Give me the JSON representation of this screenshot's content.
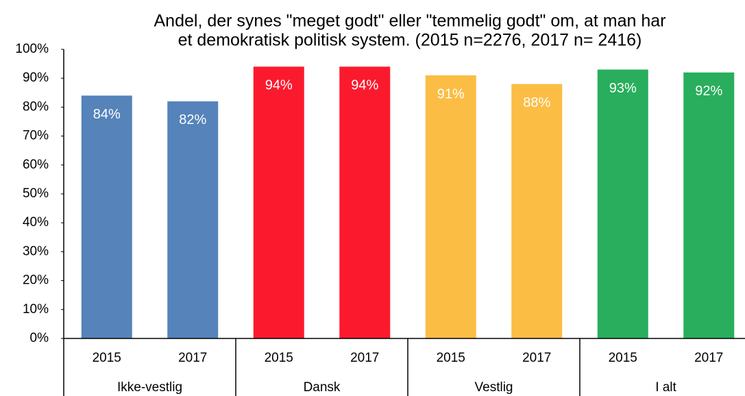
{
  "chart_data": {
    "type": "bar",
    "subtitle": [
      "Andel, der synes \"meget godt\" eller \"temmelig godt\" om, at man har",
      "et demokratisk politisk system. (2015 n=2276, 2017 n= 2416)"
    ],
    "groups": [
      {
        "name": "Ikke-vestlig",
        "color": "#5583ba",
        "categories": [
          "2015",
          "2017"
        ],
        "values": [
          84,
          82
        ],
        "value_labels": [
          "84%",
          "82%"
        ]
      },
      {
        "name": "Dansk",
        "color": "#fb1a2d",
        "categories": [
          "2015",
          "2017"
        ],
        "values": [
          94,
          94
        ],
        "value_labels": [
          "94%",
          "94%"
        ]
      },
      {
        "name": "Vestlig",
        "color": "#fbbd44",
        "categories": [
          "2015",
          "2017"
        ],
        "values": [
          91,
          88
        ],
        "value_labels": [
          "91%",
          "88%"
        ]
      },
      {
        "name": "I alt",
        "color": "#28ae5c",
        "categories": [
          "2015",
          "2017"
        ],
        "values": [
          93,
          92
        ],
        "value_labels": [
          "93%",
          "92%"
        ]
      }
    ],
    "ylim": [
      0,
      100
    ],
    "yticks": [
      {
        "value": 0,
        "label": "0%"
      },
      {
        "value": 10,
        "label": "10%"
      },
      {
        "value": 20,
        "label": "20%"
      },
      {
        "value": 30,
        "label": "30%"
      },
      {
        "value": 40,
        "label": "40%"
      },
      {
        "value": 50,
        "label": "50%"
      },
      {
        "value": 60,
        "label": "60%"
      },
      {
        "value": 70,
        "label": "70%"
      },
      {
        "value": 80,
        "label": "80%"
      },
      {
        "value": 90,
        "label": "90%"
      },
      {
        "value": 100,
        "label": "100%"
      }
    ]
  }
}
